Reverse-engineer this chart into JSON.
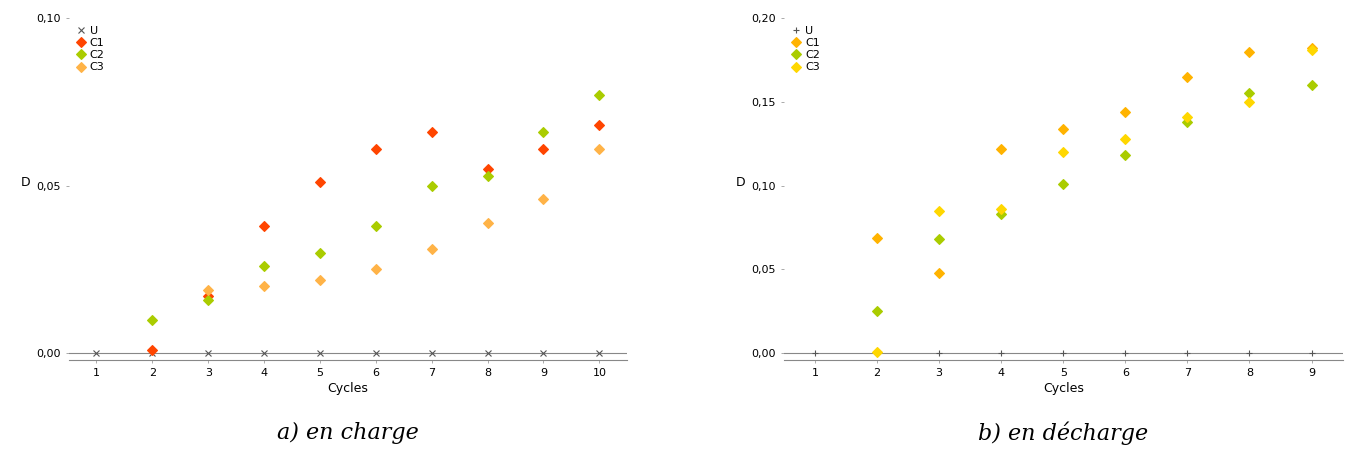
{
  "left": {
    "title": "a) en charge",
    "xlabel": "Cycles",
    "ylabel": "D",
    "xlim": [
      0.5,
      10.5
    ],
    "ylim": [
      -0.002,
      0.1
    ],
    "yticks": [
      0.0,
      0.05,
      0.1
    ],
    "ytick_labels": [
      "0,00",
      "0,05",
      "0,10"
    ],
    "xticks": [
      1,
      2,
      3,
      4,
      5,
      6,
      7,
      8,
      9,
      10
    ],
    "series": {
      "U": {
        "marker": "x",
        "color": "#555555",
        "mfc": "none",
        "x": [
          1,
          2,
          3,
          4,
          5,
          6,
          7,
          8,
          9,
          10
        ],
        "y": [
          0.0,
          0.0,
          0.0,
          0.0,
          0.0,
          0.0,
          0.0,
          0.0,
          0.0,
          0.0
        ]
      },
      "C1": {
        "marker": "D",
        "color": "#FF4500",
        "mfc": "#FF4500",
        "x": [
          2,
          3,
          4,
          5,
          6,
          7,
          8,
          9,
          10
        ],
        "y": [
          0.001,
          0.017,
          0.038,
          0.051,
          0.061,
          0.066,
          0.055,
          0.061,
          0.068
        ]
      },
      "C2": {
        "marker": "D",
        "color": "#AACC00",
        "mfc": "#AACC00",
        "x": [
          2,
          3,
          4,
          5,
          6,
          7,
          8,
          9,
          10
        ],
        "y": [
          0.01,
          0.016,
          0.026,
          0.03,
          0.038,
          0.05,
          0.053,
          0.066,
          0.077
        ]
      },
      "C3": {
        "marker": "D",
        "color": "#FFB347",
        "mfc": "#FFB347",
        "x": [
          3,
          4,
          5,
          6,
          7,
          8,
          9,
          10
        ],
        "y": [
          0.019,
          0.02,
          0.022,
          0.025,
          0.031,
          0.039,
          0.046,
          0.061
        ]
      }
    }
  },
  "right": {
    "title": "b) en décharge",
    "xlabel": "Cycles",
    "ylabel": "D",
    "xlim": [
      0.5,
      9.5
    ],
    "ylim": [
      -0.004,
      0.2
    ],
    "yticks": [
      0.0,
      0.05,
      0.1,
      0.15,
      0.2
    ],
    "ytick_labels": [
      "0,00",
      "0,05",
      "0,10",
      "0,15",
      "0,20"
    ],
    "xticks": [
      1,
      2,
      3,
      4,
      5,
      6,
      7,
      8,
      9
    ],
    "series": {
      "U": {
        "marker": "+",
        "color": "#555555",
        "mfc": "none",
        "x": [
          1,
          2,
          3,
          4,
          5,
          6,
          7,
          8,
          9
        ],
        "y": [
          0.0,
          0.0,
          0.0,
          0.0,
          0.0,
          0.0,
          0.0,
          0.0,
          0.0
        ]
      },
      "C1": {
        "marker": "D",
        "color": "#FFB300",
        "mfc": "#FFB300",
        "x": [
          2,
          3,
          4,
          5,
          6,
          7,
          8,
          9
        ],
        "y": [
          0.069,
          0.048,
          0.122,
          0.134,
          0.144,
          0.165,
          0.18,
          0.182
        ]
      },
      "C2": {
        "marker": "D",
        "color": "#AACC00",
        "mfc": "#AACC00",
        "x": [
          2,
          3,
          4,
          5,
          6,
          7,
          8,
          9
        ],
        "y": [
          0.025,
          0.068,
          0.083,
          0.101,
          0.118,
          0.138,
          0.155,
          0.16
        ]
      },
      "C3": {
        "marker": "D",
        "color": "#FFD700",
        "mfc": "#FFD700",
        "x": [
          2,
          3,
          4,
          5,
          6,
          7,
          8,
          9
        ],
        "y": [
          0.001,
          0.085,
          0.086,
          0.12,
          0.128,
          0.141,
          0.15,
          0.181
        ]
      }
    }
  },
  "subtitle_fontsize": 16,
  "axis_label_fontsize": 9,
  "tick_fontsize": 8,
  "legend_fontsize": 8,
  "marker_size": 5,
  "border_color": "#888888",
  "figure_bg": "#ffffff"
}
